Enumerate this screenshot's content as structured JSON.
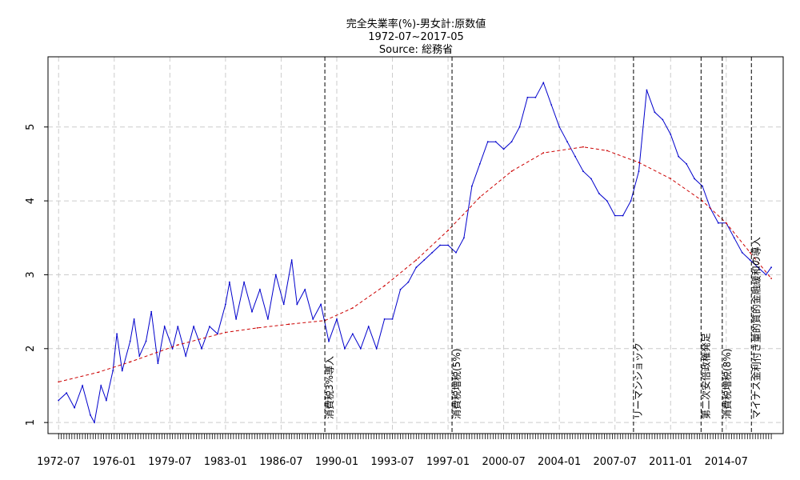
{
  "chart_data": {
    "type": "line",
    "title": "完全失業率(%)-男女計:原数値",
    "subtitle": "1972-07~2017-05",
    "source": "Source: 総務省",
    "xlabel": "",
    "ylabel": "",
    "ylim": [
      0.85,
      5.95
    ],
    "xlim": [
      "1971-11",
      "2018-02"
    ],
    "yticks": [
      1,
      2,
      3,
      4,
      5
    ],
    "xticks": [
      "1972-07",
      "1976-01",
      "1979-07",
      "1983-01",
      "1986-07",
      "1990-01",
      "1993-07",
      "1997-01",
      "2000-07",
      "2004-01",
      "2007-07",
      "2011-01",
      "2014-07"
    ],
    "grid": true,
    "grid_style": "dashed",
    "series": [
      {
        "color": "#0000cc",
        "style": "solid",
        "points": [
          [
            "1972-07",
            1.3
          ],
          [
            "1973-01",
            1.4
          ],
          [
            "1973-07",
            1.2
          ],
          [
            "1974-01",
            1.5
          ],
          [
            "1974-07",
            1.1
          ],
          [
            "1974-10",
            1.0
          ],
          [
            "1975-03",
            1.5
          ],
          [
            "1975-07",
            1.3
          ],
          [
            "1975-12",
            1.7
          ],
          [
            "1976-03",
            2.2
          ],
          [
            "1976-07",
            1.7
          ],
          [
            "1977-01",
            2.1
          ],
          [
            "1977-04",
            2.4
          ],
          [
            "1977-08",
            1.9
          ],
          [
            "1978-01",
            2.1
          ],
          [
            "1978-05",
            2.5
          ],
          [
            "1978-10",
            1.8
          ],
          [
            "1979-03",
            2.3
          ],
          [
            "1979-09",
            2.0
          ],
          [
            "1980-01",
            2.3
          ],
          [
            "1980-07",
            1.9
          ],
          [
            "1981-01",
            2.3
          ],
          [
            "1981-07",
            2.0
          ],
          [
            "1982-01",
            2.3
          ],
          [
            "1982-07",
            2.2
          ],
          [
            "1983-01",
            2.6
          ],
          [
            "1983-04",
            2.9
          ],
          [
            "1983-09",
            2.4
          ],
          [
            "1984-03",
            2.9
          ],
          [
            "1984-09",
            2.5
          ],
          [
            "1985-03",
            2.8
          ],
          [
            "1985-09",
            2.4
          ],
          [
            "1986-03",
            3.0
          ],
          [
            "1986-09",
            2.6
          ],
          [
            "1987-03",
            3.2
          ],
          [
            "1987-07",
            2.6
          ],
          [
            "1988-01",
            2.8
          ],
          [
            "1988-07",
            2.4
          ],
          [
            "1989-01",
            2.6
          ],
          [
            "1989-07",
            2.1
          ],
          [
            "1990-01",
            2.4
          ],
          [
            "1990-07",
            2.0
          ],
          [
            "1991-01",
            2.2
          ],
          [
            "1991-07",
            2.0
          ],
          [
            "1992-01",
            2.3
          ],
          [
            "1992-07",
            2.0
          ],
          [
            "1993-01",
            2.4
          ],
          [
            "1993-07",
            2.4
          ],
          [
            "1994-01",
            2.8
          ],
          [
            "1994-07",
            2.9
          ],
          [
            "1995-01",
            3.1
          ],
          [
            "1995-07",
            3.2
          ],
          [
            "1996-01",
            3.3
          ],
          [
            "1996-07",
            3.4
          ],
          [
            "1997-01",
            3.4
          ],
          [
            "1997-07",
            3.3
          ],
          [
            "1998-01",
            3.5
          ],
          [
            "1998-07",
            4.2
          ],
          [
            "1999-01",
            4.5
          ],
          [
            "1999-07",
            4.8
          ],
          [
            "2000-01",
            4.8
          ],
          [
            "2000-07",
            4.7
          ],
          [
            "2001-01",
            4.8
          ],
          [
            "2001-07",
            5.0
          ],
          [
            "2002-01",
            5.4
          ],
          [
            "2002-07",
            5.4
          ],
          [
            "2003-01",
            5.6
          ],
          [
            "2003-07",
            5.3
          ],
          [
            "2004-01",
            5.0
          ],
          [
            "2004-07",
            4.8
          ],
          [
            "2005-01",
            4.6
          ],
          [
            "2005-07",
            4.4
          ],
          [
            "2006-01",
            4.3
          ],
          [
            "2006-07",
            4.1
          ],
          [
            "2007-01",
            4.0
          ],
          [
            "2007-07",
            3.8
          ],
          [
            "2008-01",
            3.8
          ],
          [
            "2008-07",
            4.0
          ],
          [
            "2009-01",
            4.4
          ],
          [
            "2009-07",
            5.5
          ],
          [
            "2010-01",
            5.2
          ],
          [
            "2010-07",
            5.1
          ],
          [
            "2011-01",
            4.9
          ],
          [
            "2011-07",
            4.6
          ],
          [
            "2012-01",
            4.5
          ],
          [
            "2012-07",
            4.3
          ],
          [
            "2013-01",
            4.2
          ],
          [
            "2013-07",
            3.9
          ],
          [
            "2014-01",
            3.7
          ],
          [
            "2014-07",
            3.7
          ],
          [
            "2015-01",
            3.5
          ],
          [
            "2015-07",
            3.3
          ],
          [
            "2016-01",
            3.2
          ],
          [
            "2016-07",
            3.1
          ],
          [
            "2017-01",
            3.0
          ],
          [
            "2017-05",
            3.1
          ]
        ]
      },
      {
        "color": "#cc0000",
        "style": "dashed",
        "points": [
          [
            "1972-07",
            1.55
          ],
          [
            "1975-01",
            1.68
          ],
          [
            "1977-01",
            1.82
          ],
          [
            "1980-01",
            2.05
          ],
          [
            "1983-01",
            2.22
          ],
          [
            "1985-01",
            2.28
          ],
          [
            "1987-01",
            2.33
          ],
          [
            "1989-04",
            2.38
          ],
          [
            "1991-01",
            2.55
          ],
          [
            "1993-01",
            2.85
          ],
          [
            "1995-01",
            3.2
          ],
          [
            "1997-01",
            3.6
          ],
          [
            "1999-01",
            4.05
          ],
          [
            "2001-01",
            4.4
          ],
          [
            "2003-01",
            4.65
          ],
          [
            "2005-07",
            4.73
          ],
          [
            "2007-01",
            4.68
          ],
          [
            "2009-01",
            4.52
          ],
          [
            "2011-01",
            4.3
          ],
          [
            "2013-01",
            4.0
          ],
          [
            "2014-07",
            3.7
          ],
          [
            "2016-01",
            3.3
          ],
          [
            "2017-05",
            2.95
          ]
        ]
      }
    ],
    "events": [
      {
        "date": "1989-04",
        "label": "消費税3%導入"
      },
      {
        "date": "1997-04",
        "label": "消費税増税(5%)"
      },
      {
        "date": "2008-09",
        "label": "リーマンショック"
      },
      {
        "date": "2012-12",
        "label": "第二次安倍政権発足"
      },
      {
        "date": "2014-04",
        "label": "消費税増税(8%)"
      },
      {
        "date": "2016-02",
        "label": "マイナス金利付き量的質的金融緩和の導入"
      }
    ]
  }
}
